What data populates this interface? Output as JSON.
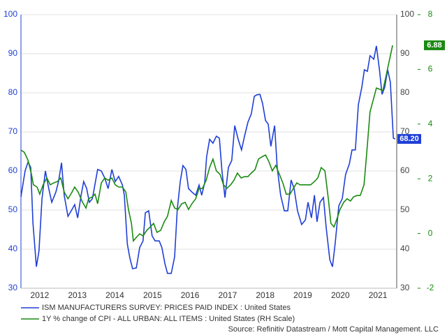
{
  "chart_data": {
    "type": "line",
    "xlim": [
      2012.0,
      2022.0
    ],
    "xticks": [
      {
        "value": 2012.5,
        "label": "2012"
      },
      {
        "value": 2013.5,
        "label": "2013"
      },
      {
        "value": 2014.5,
        "label": "2014"
      },
      {
        "value": 2015.5,
        "label": "2015"
      },
      {
        "value": 2016.5,
        "label": "2016"
      },
      {
        "value": 2017.5,
        "label": "2017"
      },
      {
        "value": 2018.5,
        "label": "2018"
      },
      {
        "value": 2019.5,
        "label": "2019"
      },
      {
        "value": 2020.5,
        "label": "2020"
      },
      {
        "value": 2021.5,
        "label": "2021"
      }
    ],
    "ylim": [
      30,
      100
    ],
    "yticks": [
      30,
      40,
      50,
      60,
      70,
      80,
      90,
      100
    ],
    "y2lim": [
      -2,
      8
    ],
    "y2ticks": [
      -2,
      0,
      2,
      4,
      6,
      8
    ],
    "grid": true,
    "source": "Source: Refinitiv Datastream / Mott Capital Management. LLC",
    "series": [
      {
        "name": "ISM MANUFACTURERS SURVEY: PRICES PAID INDEX : United States",
        "color": "#1f3fd6",
        "axis": "y",
        "last_label": "68.20",
        "x": [
          2012.0,
          2012.11,
          2012.19,
          2012.26,
          2012.32,
          2012.41,
          2012.48,
          2012.56,
          2012.65,
          2012.74,
          2012.82,
          2012.93,
          2013.0,
          2013.08,
          2013.15,
          2013.25,
          2013.36,
          2013.43,
          2013.51,
          2013.6,
          2013.67,
          2013.75,
          2013.82,
          2013.9,
          2013.95,
          2014.04,
          2014.14,
          2014.23,
          2014.32,
          2014.42,
          2014.51,
          2014.6,
          2014.7,
          2014.75,
          2014.83,
          2014.9,
          2014.97,
          2015.07,
          2015.16,
          2015.25,
          2015.31,
          2015.4,
          2015.49,
          2015.57,
          2015.68,
          2015.75,
          2015.83,
          2015.9,
          2016.0,
          2016.09,
          2016.16,
          2016.24,
          2016.31,
          2016.39,
          2016.46,
          2016.55,
          2016.65,
          2016.74,
          2016.81,
          2016.89,
          2016.94,
          2017.02,
          2017.11,
          2017.2,
          2017.28,
          2017.35,
          2017.43,
          2017.52,
          2017.61,
          2017.69,
          2017.78,
          2017.87,
          2017.95,
          2018.04,
          2018.13,
          2018.21,
          2018.28,
          2018.36,
          2018.43,
          2018.51,
          2018.58,
          2018.65,
          2018.75,
          2018.82,
          2018.91,
          2019.01,
          2019.1,
          2019.19,
          2019.27,
          2019.36,
          2019.47,
          2019.57,
          2019.64,
          2019.73,
          2019.81,
          2019.88,
          2019.96,
          2020.05,
          2020.12,
          2020.22,
          2020.29,
          2020.36,
          2020.46,
          2020.55,
          2020.64,
          2020.74,
          2020.81,
          2020.9,
          2020.98,
          2021.07,
          2021.14,
          2021.22,
          2021.29,
          2021.39,
          2021.46,
          2021.54,
          2021.61,
          2021.68,
          2021.76,
          2021.83,
          2021.91,
          2021.96
        ],
        "values": [
          53.4,
          60,
          62.3,
          60.9,
          46.6,
          35.5,
          39.5,
          52.9,
          60,
          55.5,
          52,
          54.6,
          57.3,
          62.1,
          53.8,
          48.4,
          50.2,
          51.4,
          48,
          53.8,
          57.3,
          55.5,
          52,
          52.9,
          55.5,
          60.4,
          60,
          58.2,
          55.5,
          60.4,
          57.3,
          58.6,
          56.4,
          53.8,
          41.3,
          37.7,
          35,
          35.2,
          40.4,
          42.1,
          49.3,
          49.8,
          43.4,
          42.1,
          42.1,
          40.4,
          36.3,
          33.8,
          33.8,
          38,
          50.2,
          57.3,
          61.4,
          60.4,
          55.5,
          54.6,
          53.8,
          56.4,
          53.8,
          57,
          63.6,
          68.1,
          67.1,
          68.9,
          68.4,
          60,
          53.2,
          60.9,
          62.7,
          71.6,
          68.1,
          65.4,
          68.9,
          72.5,
          74.6,
          79.1,
          79.5,
          79.6,
          77.3,
          72.9,
          72,
          66.3,
          71.6,
          60.9,
          53.8,
          49.8,
          49.8,
          57.7,
          55.5,
          49.8,
          46.3,
          47.5,
          52,
          48,
          53.8,
          47,
          52,
          53.2,
          45.7,
          37.3,
          35.5,
          41.3,
          51.1,
          52.9,
          59.1,
          61.8,
          65.4,
          65.4,
          77,
          81.4,
          85.9,
          85.5,
          89.5,
          88.6,
          92,
          85.9,
          79.6,
          81.4,
          85.9,
          82.7,
          68.4,
          68.2
        ]
      },
      {
        "name": "1Y % change of CPI - ALL URBAN: ALL ITEMS : United States (RH Scale)",
        "color": "#1a8a12",
        "axis": "y2",
        "last_label": "6.88",
        "x": [
          2012.0,
          2012.09,
          2012.19,
          2012.28,
          2012.33,
          2012.43,
          2012.5,
          2012.59,
          2012.69,
          2012.78,
          2012.87,
          2012.97,
          2013.06,
          2013.15,
          2013.25,
          2013.34,
          2013.43,
          2013.52,
          2013.64,
          2013.73,
          2013.8,
          2013.9,
          2013.97,
          2014.04,
          2014.14,
          2014.23,
          2014.32,
          2014.42,
          2014.51,
          2014.6,
          2014.7,
          2014.79,
          2014.86,
          2014.94,
          2014.99,
          2015.07,
          2015.16,
          2015.25,
          2015.35,
          2015.44,
          2015.53,
          2015.62,
          2015.72,
          2015.81,
          2015.9,
          2016.0,
          2016.09,
          2016.18,
          2016.28,
          2016.37,
          2016.46,
          2016.55,
          2016.65,
          2016.74,
          2016.83,
          2016.93,
          2017.02,
          2017.11,
          2017.2,
          2017.3,
          2017.39,
          2017.48,
          2017.58,
          2017.67,
          2017.76,
          2017.86,
          2017.95,
          2018.04,
          2018.13,
          2018.23,
          2018.32,
          2018.41,
          2018.51,
          2018.6,
          2018.69,
          2018.78,
          2018.88,
          2018.97,
          2019.06,
          2019.16,
          2019.25,
          2019.34,
          2019.43,
          2019.53,
          2019.62,
          2019.71,
          2019.81,
          2019.9,
          2019.99,
          2020.09,
          2020.18,
          2020.25,
          2020.33,
          2020.42,
          2020.49,
          2020.59,
          2020.68,
          2020.77,
          2020.85,
          2020.94,
          2021.03,
          2021.13,
          2021.2,
          2021.29,
          2021.39,
          2021.46,
          2021.55,
          2021.63,
          2021.72,
          2021.81,
          2021.89
        ],
        "values": [
          3.05,
          2.97,
          2.67,
          2.16,
          1.78,
          1.7,
          1.44,
          1.78,
          2.03,
          1.78,
          1.85,
          1.9,
          2.03,
          1.52,
          1.27,
          1.47,
          1.7,
          1.52,
          1.14,
          0.93,
          1.27,
          1.34,
          1.44,
          1.09,
          1.85,
          2.03,
          1.95,
          2.03,
          1.78,
          1.7,
          1.7,
          1.52,
          0.88,
          0.37,
          -0.27,
          -0.14,
          -0.01,
          -0.09,
          0.12,
          0.24,
          0.37,
          0.04,
          0.12,
          0.42,
          0.63,
          1.21,
          0.93,
          0.88,
          1.09,
          1.14,
          0.88,
          1.09,
          1.27,
          1.65,
          1.65,
          1.95,
          2.41,
          2.72,
          2.29,
          2.16,
          1.78,
          1.65,
          1.78,
          1.95,
          2.21,
          2.03,
          2.08,
          2.08,
          2.21,
          2.34,
          2.72,
          2.8,
          2.87,
          2.62,
          2.29,
          2.49,
          2.16,
          1.85,
          1.44,
          1.44,
          1.65,
          1.85,
          1.78,
          1.78,
          1.78,
          1.78,
          1.9,
          2.03,
          2.41,
          2.29,
          1.27,
          0.37,
          0.24,
          0.58,
          0.88,
          1.14,
          1.27,
          1.19,
          1.34,
          1.39,
          1.39,
          1.78,
          2.92,
          4.45,
          4.96,
          5.32,
          5.27,
          5.22,
          5.78,
          6.37,
          6.88
        ]
      }
    ]
  }
}
